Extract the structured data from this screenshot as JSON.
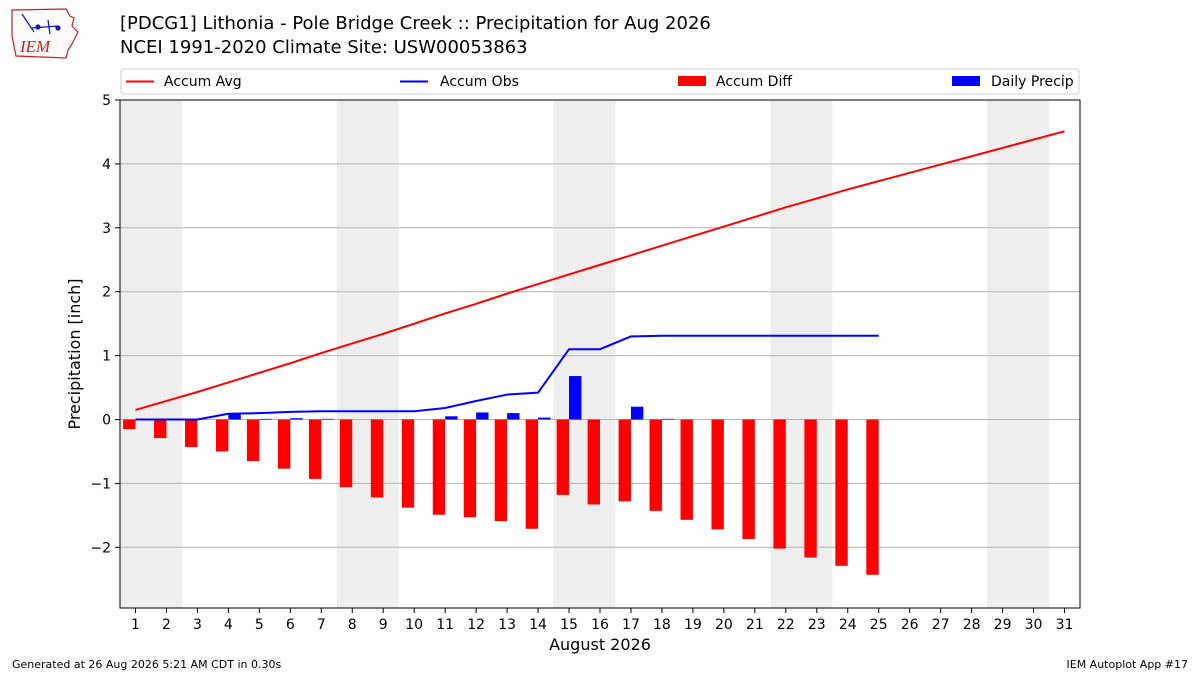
{
  "header": {
    "title": "[PDCG1] Lithonia - Pole Bridge Creek :: Precipitation for Aug 2026",
    "subtitle": "NCEI 1991-2020 Climate Site: USW00053863",
    "logo_text": "IEM"
  },
  "footer": {
    "generated": "Generated at 26 Aug 2026 5:21 AM CDT in 0.30s",
    "app": "IEM Autoplot App #17"
  },
  "colors": {
    "accum_avg": "#ff0000",
    "accum_obs": "#0000ff",
    "accum_diff": "#ff0000",
    "daily_precip": "#0000ff",
    "weekend_shade": "#eeeeee",
    "grid": "#b0b0b0"
  },
  "chart_data": {
    "type": "bar",
    "xlabel": "August 2026",
    "ylabel": "Precipitation [inch]",
    "ylim": [
      -2.95,
      5.0
    ],
    "xlim": [
      0.5,
      31.5
    ],
    "yticks": [
      -2,
      -1,
      0,
      1,
      2,
      3,
      4,
      5
    ],
    "ytick_labels": [
      "−2",
      "−1",
      "0",
      "1",
      "2",
      "3",
      "4",
      "5"
    ],
    "days": [
      1,
      2,
      3,
      4,
      5,
      6,
      7,
      8,
      9,
      10,
      11,
      12,
      13,
      14,
      15,
      16,
      17,
      18,
      19,
      20,
      21,
      22,
      23,
      24,
      25,
      26,
      27,
      28,
      29,
      30,
      31
    ],
    "grid": true,
    "legend_position": "top",
    "shaded_weekends": [
      [
        1,
        2
      ],
      [
        8,
        9
      ],
      [
        15,
        16
      ],
      [
        22,
        23
      ],
      [
        29,
        30
      ]
    ],
    "legend": [
      "Accum Avg",
      "Accum Obs",
      "Accum Diff",
      "Daily Precip"
    ],
    "series": [
      {
        "name": "Accum Avg",
        "kind": "line",
        "values": [
          0.15,
          0.29,
          0.43,
          0.58,
          0.73,
          0.88,
          1.04,
          1.19,
          1.34,
          1.5,
          1.66,
          1.81,
          1.97,
          2.12,
          2.27,
          2.42,
          2.57,
          2.72,
          2.87,
          3.02,
          3.17,
          3.32,
          3.46,
          3.6,
          3.73,
          3.86,
          3.99,
          4.12,
          4.25,
          4.38,
          4.51
        ]
      },
      {
        "name": "Accum Obs",
        "kind": "line",
        "values": [
          0.0,
          0.0,
          0.0,
          0.09,
          0.1,
          0.12,
          0.13,
          0.13,
          0.13,
          0.13,
          0.18,
          0.29,
          0.39,
          0.42,
          1.1,
          1.1,
          1.3,
          1.31,
          1.31,
          1.31,
          1.31,
          1.31,
          1.31,
          1.31,
          1.31
        ]
      },
      {
        "name": "Accum Diff",
        "kind": "bar",
        "values": [
          -0.15,
          -0.29,
          -0.43,
          -0.5,
          -0.65,
          -0.77,
          -0.93,
          -1.06,
          -1.22,
          -1.38,
          -1.49,
          -1.53,
          -1.59,
          -1.71,
          -1.18,
          -1.33,
          -1.28,
          -1.43,
          -1.57,
          -1.72,
          -1.87,
          -2.02,
          -2.16,
          -2.29,
          -2.43
        ]
      },
      {
        "name": "Daily Precip",
        "kind": "bar",
        "values": [
          0.0,
          0.0,
          0.0,
          0.09,
          0.01,
          0.02,
          0.01,
          0.0,
          0.0,
          0.0,
          0.05,
          0.11,
          0.1,
          0.03,
          0.68,
          0.0,
          0.2,
          0.01,
          0.0,
          0.0,
          0.0,
          0.0,
          0.0,
          0.0,
          0.0
        ]
      }
    ]
  }
}
